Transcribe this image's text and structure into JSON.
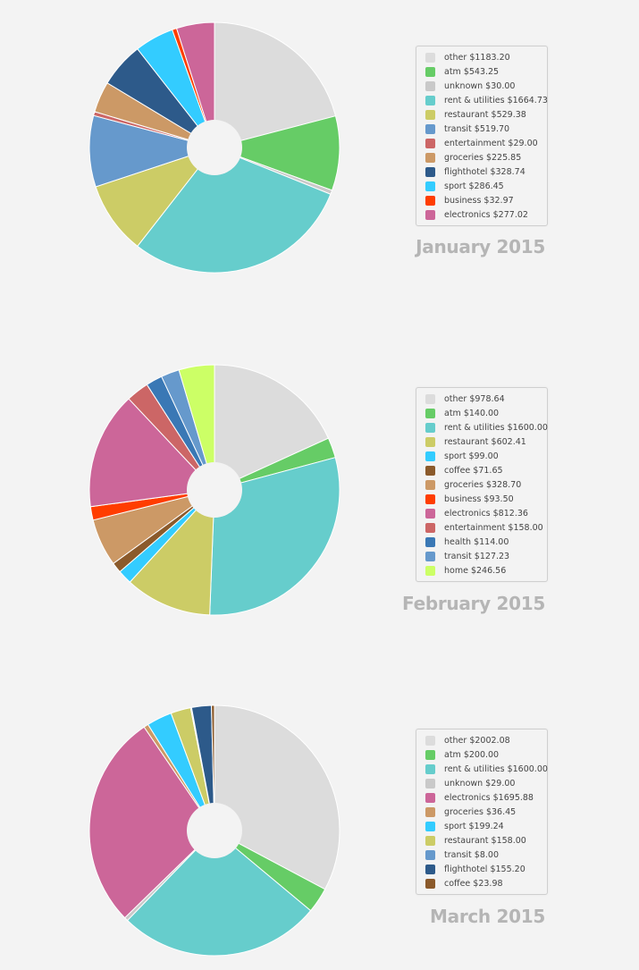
{
  "chart_data": [
    {
      "type": "pie",
      "title": "January 2015",
      "legend_position": "right",
      "slices": [
        {
          "label": "other $1183.20",
          "value": 1183.2,
          "color": "#dcdcdc"
        },
        {
          "label": "atm $543.25",
          "value": 543.25,
          "color": "#66cc66"
        },
        {
          "label": "unknown $30.00",
          "value": 30.0,
          "color": "#c9c9c9"
        },
        {
          "label": "rent & utilities $1664.73",
          "value": 1664.73,
          "color": "#66cdcc"
        },
        {
          "label": "restaurant $529.38",
          "value": 529.38,
          "color": "#cccc66"
        },
        {
          "label": "transit $519.70",
          "value": 519.7,
          "color": "#6699cc"
        },
        {
          "label": "entertainment $29.00",
          "value": 29.0,
          "color": "#cc6666"
        },
        {
          "label": "groceries $225.85",
          "value": 225.85,
          "color": "#cc9966"
        },
        {
          "label": "flighthotel $328.74",
          "value": 328.74,
          "color": "#2d5a8a"
        },
        {
          "label": "sport $286.45",
          "value": 286.45,
          "color": "#33ccff"
        },
        {
          "label": "business $32.97",
          "value": 32.97,
          "color": "#ff3d00"
        },
        {
          "label": "electronics $277.02",
          "value": 277.02,
          "color": "#cc6699"
        }
      ]
    },
    {
      "type": "pie",
      "title": "February 2015",
      "legend_position": "right",
      "slices": [
        {
          "label": "other $978.64",
          "value": 978.64,
          "color": "#dcdcdc"
        },
        {
          "label": "atm $140.00",
          "value": 140.0,
          "color": "#66cc66"
        },
        {
          "label": "rent & utilities $1600.00",
          "value": 1600.0,
          "color": "#66cdcc"
        },
        {
          "label": "restaurant $602.41",
          "value": 602.41,
          "color": "#cccc66"
        },
        {
          "label": "sport $99.00",
          "value": 99.0,
          "color": "#33ccff"
        },
        {
          "label": "coffee $71.65",
          "value": 71.65,
          "color": "#8b5a2b"
        },
        {
          "label": "groceries $328.70",
          "value": 328.7,
          "color": "#cc9966"
        },
        {
          "label": "business $93.50",
          "value": 93.5,
          "color": "#ff3d00"
        },
        {
          "label": "electronics $812.36",
          "value": 812.36,
          "color": "#cc6699"
        },
        {
          "label": "entertainment $158.00",
          "value": 158.0,
          "color": "#cc6666"
        },
        {
          "label": "health $114.00",
          "value": 114.0,
          "color": "#3a78b5"
        },
        {
          "label": "transit $127.23",
          "value": 127.23,
          "color": "#6699cc"
        },
        {
          "label": "home $246.56",
          "value": 246.56,
          "color": "#ccff66"
        }
      ]
    },
    {
      "type": "pie",
      "title": "March 2015",
      "legend_position": "right",
      "slices": [
        {
          "label": "other $2002.08",
          "value": 2002.08,
          "color": "#dcdcdc"
        },
        {
          "label": "atm $200.00",
          "value": 200.0,
          "color": "#66cc66"
        },
        {
          "label": "rent & utilities $1600.00",
          "value": 1600.0,
          "color": "#66cdcc"
        },
        {
          "label": "unknown $29.00",
          "value": 29.0,
          "color": "#c9c9c9"
        },
        {
          "label": "electronics $1695.88",
          "value": 1695.88,
          "color": "#cc6699"
        },
        {
          "label": "groceries $36.45",
          "value": 36.45,
          "color": "#cc9966"
        },
        {
          "label": "sport $199.24",
          "value": 199.24,
          "color": "#33ccff"
        },
        {
          "label": "restaurant $158.00",
          "value": 158.0,
          "color": "#cccc66"
        },
        {
          "label": "transit $8.00",
          "value": 8.0,
          "color": "#6699cc"
        },
        {
          "label": "flighthotel $155.20",
          "value": 155.2,
          "color": "#2d5a8a"
        },
        {
          "label": "coffee $23.98",
          "value": 23.98,
          "color": "#8b5a2b"
        }
      ]
    }
  ]
}
